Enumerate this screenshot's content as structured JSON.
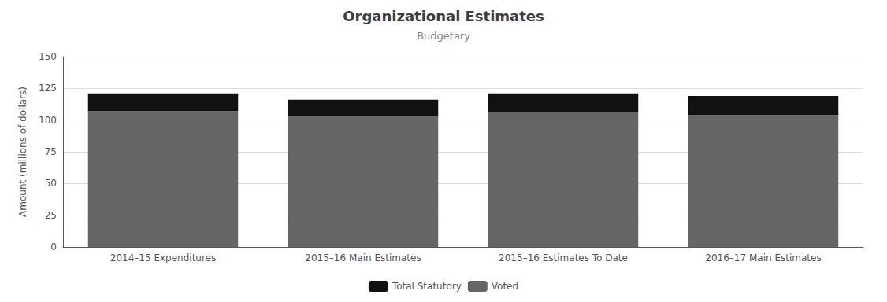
{
  "chart_data": {
    "type": "bar",
    "title": "Organizational Estimates",
    "subtitle": "Budgetary",
    "ylabel": "Amount (millions of dollars)",
    "categories": [
      "2014–15 Expenditures",
      "2015–16 Main Estimates",
      "2015–16 Estimates To Date",
      "2016–17 Main Estimates"
    ],
    "series": [
      {
        "name": "Voted",
        "color": "#666666",
        "values": [
          107.0,
          103.0,
          106.0,
          104.0
        ]
      },
      {
        "name": "Total Statutory",
        "color": "#111111",
        "values": [
          14.0,
          13.0,
          15.0,
          15.0
        ]
      }
    ],
    "ylim": [
      0,
      150
    ],
    "yticks": [
      0,
      25,
      50,
      75,
      100,
      125,
      150
    ],
    "grid": true,
    "stacked": true,
    "legend": "bottom"
  }
}
